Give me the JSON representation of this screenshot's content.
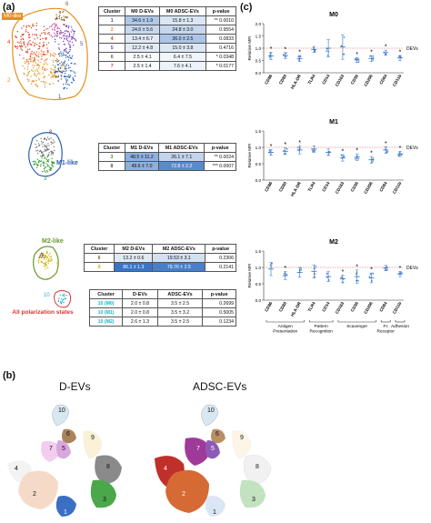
{
  "panels": {
    "a": "(a)",
    "b": "(b)",
    "c": "(c)"
  },
  "tables": [
    {
      "headers": [
        "Cluster",
        "M0 D-EVs",
        "M0 ADSC-EVs",
        "p-value"
      ],
      "rows": [
        {
          "cluster": "1",
          "d": "34.6 ± 1.9",
          "adsc": "15.8 ± 1.3",
          "p": "** 0.0010",
          "color": "#1f5fb5"
        },
        {
          "cluster": "2",
          "d": "24.6 ± 5.6",
          "adsc": "24.8 ± 3.0",
          "p": "0.9554",
          "color": "#e69020"
        },
        {
          "cluster": "4",
          "d": "13.4 ± 6.7",
          "adsc": "36.0 ± 2.5",
          "p": "0.0833",
          "color": "#e03a1a"
        },
        {
          "cluster": "5",
          "d": "12.2 ± 4.8",
          "adsc": "15.0 ± 3.8",
          "p": "0.4716",
          "color": "#7a3fbf"
        },
        {
          "cluster": "6",
          "d": "2.5 ± 4.1",
          "adsc": "6.4 ± 7.5",
          "p": "* 0.0348",
          "color": "#8a5a2a"
        },
        {
          "cluster": "7",
          "d": "2.5 ± 1.4",
          "adsc": "7.6 ± 4.1",
          "p": "* 0.0177",
          "color": "#c0399a"
        }
      ]
    },
    {
      "headers": [
        "Cluster",
        "M1 D-EVs",
        "M1 ADSC-EVs",
        "p-value"
      ],
      "rows": [
        {
          "cluster": "3",
          "d": "48.5 ± 11.2",
          "adsc": "26.1 ± 7.1",
          "p": "** 0.0024",
          "color": "#2e9a2e"
        },
        {
          "cluster": "8",
          "d": "49.6 ± 7.0",
          "adsc": "72.8 ± 2.2",
          "p": "*** 0.0007",
          "color": "#555555"
        }
      ]
    },
    {
      "headers": [
        "Cluster",
        "M2 D-EVs",
        "M2 ADSC-EVs",
        "p-value"
      ],
      "rows": [
        {
          "cluster": "6",
          "d": "13.2 ± 0.6",
          "adsc": "19.53 ± 3.1",
          "p": "0.2306",
          "color": "#8a5a2a"
        },
        {
          "cluster": "9",
          "d": "86.1 ± 1.3",
          "adsc": "79.76 ± 2.5",
          "p": "0.2141",
          "color": "#c8b400"
        }
      ]
    },
    {
      "headers": [
        "Cluster",
        "D-EVs",
        "ADSC-EVs",
        "p-value"
      ],
      "rows": [
        {
          "cluster": "10 (M0)",
          "d": "2.0 ± 0.8",
          "adsc": "3.5 ± 2.5",
          "p": "0.2699",
          "color": "#19b3c8"
        },
        {
          "cluster": "10 (M1)",
          "d": "2.0 ± 0.8",
          "adsc": "3.5 ± 3.2",
          "p": "0.5005",
          "color": "#19b3c8"
        },
        {
          "cluster": "10 (M2)",
          "d": "2.6 ± 1.3",
          "adsc": "3.5 ± 2.5",
          "p": "0.1234",
          "color": "#19b3c8"
        }
      ]
    }
  ],
  "cluster_labels": {
    "m0like": "M0-like",
    "m1like": "M1-like",
    "m2like": "M2-like",
    "allpol": "All polarization states",
    "c1": "1",
    "c2": "2",
    "c3": "3",
    "c4": "4",
    "c5": "5",
    "c6": "6",
    "c7": "7",
    "c8": "8",
    "c9": "9",
    "c10": "10"
  },
  "umap_titles": {
    "left": "D-EVs",
    "right": "ADSC-EVs"
  },
  "chart_data": [
    {
      "type": "scatter",
      "title": "M0",
      "ylabel": "Relative MFI",
      "ylim": [
        0,
        2.0
      ],
      "yticks": [
        "0.0",
        "0.5",
        "1.0",
        "1.5",
        "2.0"
      ],
      "reference_label": "DEVs",
      "reference_value": 1.0,
      "categories": [
        "CD86",
        "CD80",
        "HLA-DR",
        "TLR4",
        "CD14",
        "CD163",
        "CD36",
        "CD206",
        "CD64",
        "CD11b"
      ],
      "means": [
        0.68,
        0.7,
        0.58,
        0.95,
        1.0,
        1.05,
        0.52,
        0.58,
        0.82,
        0.6
      ],
      "sd": [
        0.15,
        0.12,
        0.12,
        0.12,
        0.35,
        0.5,
        0.1,
        0.12,
        0.1,
        0.1
      ],
      "significant": [
        "*",
        "*",
        "*",
        "",
        "",
        "",
        "*",
        "*",
        "*",
        "*"
      ]
    },
    {
      "type": "scatter",
      "title": "M1",
      "ylabel": "Relative MFI",
      "ylim": [
        0,
        1.5
      ],
      "yticks": [
        "0.0",
        "0.5",
        "1.0",
        "1.5"
      ],
      "reference_label": "DEVs",
      "reference_value": 1.0,
      "categories": [
        "CD86",
        "CD80",
        "HLA-DR",
        "TLR4",
        "CD14",
        "CD163",
        "CD36",
        "CD206",
        "CD64",
        "CD11b"
      ],
      "means": [
        0.85,
        0.88,
        0.92,
        0.95,
        0.85,
        0.68,
        0.7,
        0.62,
        0.92,
        0.8
      ],
      "sd": [
        0.08,
        0.1,
        0.12,
        0.1,
        0.1,
        0.1,
        0.1,
        0.1,
        0.1,
        0.08
      ],
      "significant": [
        "*",
        "*",
        "*",
        "",
        "",
        "*",
        "*",
        "*",
        "*",
        "*"
      ]
    },
    {
      "type": "scatter",
      "title": "M2",
      "ylabel": "Relative MFI",
      "ylim": [
        0,
        1.5
      ],
      "yticks": [
        "0.0",
        "0.5",
        "1.0",
        "1.5"
      ],
      "reference_label": "DEVs",
      "reference_value": 1.0,
      "categories": [
        "CD86",
        "CD80",
        "HLA-DR",
        "TLR4",
        "CD14",
        "CD163",
        "CD36",
        "CD206",
        "CD64",
        "CD11b"
      ],
      "means": [
        0.95,
        0.75,
        0.85,
        0.88,
        0.72,
        0.65,
        0.72,
        0.68,
        0.98,
        0.8
      ],
      "sd": [
        0.2,
        0.12,
        0.15,
        0.2,
        0.15,
        0.12,
        0.2,
        0.15,
        0.08,
        0.08
      ],
      "significant": [
        "",
        "*",
        "",
        "",
        "",
        "*",
        "*",
        "*",
        "",
        "*"
      ]
    }
  ],
  "groups": [
    {
      "label": "Antigen Presentation",
      "from": 0,
      "to": 2
    },
    {
      "label": "Pattern Recognition",
      "from": 3,
      "to": 4
    },
    {
      "label": "Scavenger",
      "from": 5,
      "to": 7
    },
    {
      "label": "Fc Receptor",
      "from": 8,
      "to": 8
    },
    {
      "label": "Adhesion",
      "from": 9,
      "to": 9
    }
  ],
  "colors": {
    "c1": "#3a6fc4",
    "c2": "#e8b89a",
    "c3": "#4aa84a",
    "c4": "#e6e6e6",
    "c5": "#b07fd0",
    "c6": "#a9835a",
    "c7": "#c56cc0",
    "c8": "#8a8a8a",
    "c9": "#f0d890",
    "c10": "#b9d7e6",
    "dot": "#5b8fd9",
    "ref": "#e05050",
    "hi": "#2f6fc4"
  }
}
